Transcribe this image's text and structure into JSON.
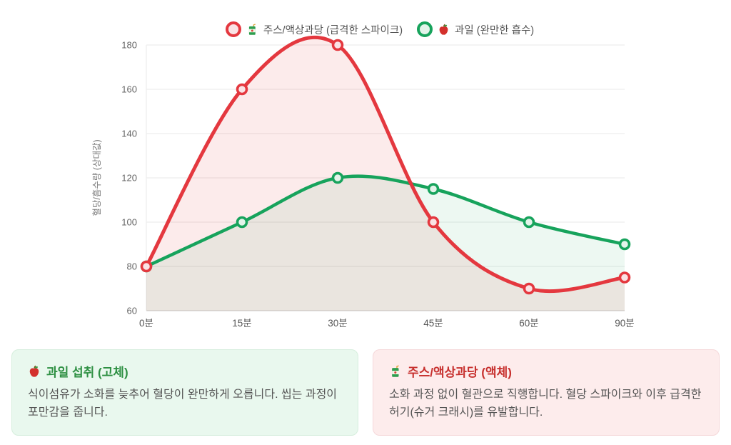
{
  "chart_data": {
    "type": "line",
    "title": "",
    "xlabel": "",
    "ylabel": "혈당/흡수량 (상대값)",
    "categories": [
      "0분",
      "15분",
      "30분",
      "45분",
      "60분",
      "90분"
    ],
    "series": [
      {
        "name": "주스/액상과당 (급격한 스파이크)",
        "values": [
          80,
          160,
          180,
          100,
          70,
          75
        ],
        "color": "#e4383f",
        "fill": "rgba(228,56,63,0.10)",
        "point_fill": "#fae3e5"
      },
      {
        "name": "과일 (완만한 흡수)",
        "values": [
          80,
          100,
          120,
          115,
          100,
          90
        ],
        "color": "#17a35c",
        "fill": "rgba(23,163,92,0.08)",
        "point_fill": "#e3f4ea"
      }
    ],
    "ylim": [
      60,
      180
    ],
    "ytick_step": 20,
    "yticks": [
      60,
      80,
      100,
      120,
      140,
      160,
      180
    ],
    "grid": "horizontal-only",
    "legend_position": "top",
    "curve": "smooth",
    "area_fill": true
  },
  "legend": {
    "items": [
      {
        "label": "주스/액상과당 (급격한 스파이크)",
        "icon": "juice-icon"
      },
      {
        "label": "과일 (완만한 흡수)",
        "icon": "apple-icon"
      }
    ]
  },
  "cards": [
    {
      "icon": "apple-icon",
      "title": "과일 섭취 (고체)",
      "body": "식이섬유가 소화를 늦추어 혈당이 완만하게 오릅니다. 씹는 과정이 포만감을 줍니다.",
      "title_color": "#2e9043",
      "bg_color": "#e9f8ee",
      "border_color": "#d6eedd"
    },
    {
      "icon": "juice-icon",
      "title": "주스/액상과당 (액체)",
      "body": "소화 과정 없이 혈관으로 직행합니다. 혈당 스파이크와 이후 급격한 허기(슈거 크래시)를 유발합니다.",
      "title_color": "#c7302e",
      "bg_color": "#fdecec",
      "border_color": "#f5d8da"
    }
  ],
  "colors": {
    "juice_line": "#e4383f",
    "fruit_line": "#17a35c",
    "grid_line": "#ededed",
    "axis_line": "#d7d7d7",
    "tick_text": "#666666"
  }
}
